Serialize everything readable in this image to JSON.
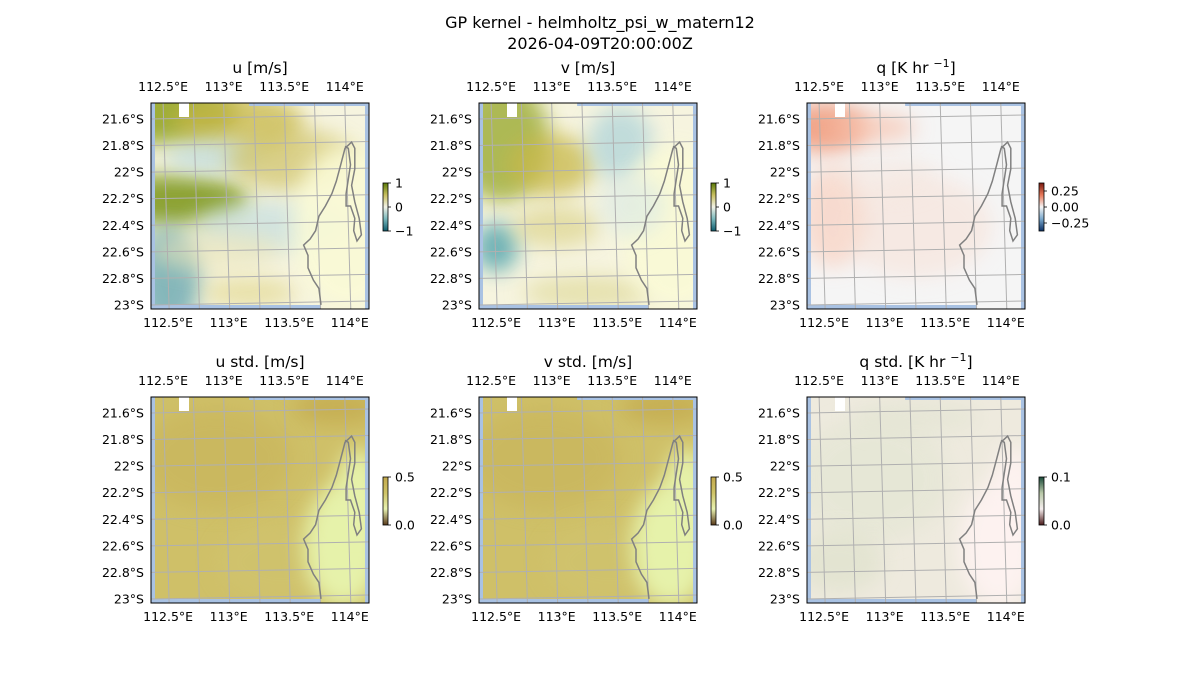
{
  "figure": {
    "title": "GP kernel - helmholtz_psi_w_matern12",
    "subtitle": "2026-04-09T20:00:00Z"
  },
  "axes": {
    "lon_ticks": [
      "112.5°E",
      "113°E",
      "113.5°E",
      "114°E"
    ],
    "lat_ticks": [
      "21.6°S",
      "21.8°S",
      "22°S",
      "22.2°S",
      "22.4°S",
      "22.6°S",
      "22.8°S",
      "23°S"
    ]
  },
  "panels": [
    {
      "id": "u",
      "title_parts": [
        "u [m/s]"
      ],
      "colormap": "green-yellow-white-teal",
      "colorbar": {
        "ticks": [
          "1",
          "0",
          "−1"
        ],
        "colors": [
          "#5a7a08",
          "#c9c060",
          "#f2f2e6",
          "#7ab8bc",
          "#0e5c6e"
        ]
      }
    },
    {
      "id": "v",
      "title_parts": [
        "v [m/s]"
      ],
      "colormap": "green-yellow-white-teal",
      "colorbar": {
        "ticks": [
          "1",
          "0",
          "−1"
        ],
        "colors": [
          "#5a7a08",
          "#c9c060",
          "#f2f2e6",
          "#7ab8bc",
          "#0e5c6e"
        ]
      }
    },
    {
      "id": "q",
      "title_parts": [
        "q [K hr ",
        "−1",
        "]"
      ],
      "colormap": "red-white-blue",
      "colorbar": {
        "ticks": [
          "0.25",
          "0.00",
          "−0.25"
        ],
        "colors": [
          "#7a1a10",
          "#e8795a",
          "#f5f5f5",
          "#7aa8cc",
          "#0c3066"
        ]
      }
    },
    {
      "id": "u_std",
      "title_parts": [
        "u std. [m/s]"
      ],
      "colormap": "sequential-olive",
      "colorbar": {
        "ticks": [
          "0.5",
          "0.0"
        ],
        "colors": [
          "#c2a84c",
          "#cfc468",
          "#e8f2b0",
          "#5a3a1a"
        ]
      }
    },
    {
      "id": "v_std",
      "title_parts": [
        "v std. [m/s]"
      ],
      "colormap": "sequential-olive",
      "colorbar": {
        "ticks": [
          "0.5",
          "0.0"
        ],
        "colors": [
          "#c2a84c",
          "#cfc468",
          "#e8f2b0",
          "#5a3a1a"
        ]
      }
    },
    {
      "id": "q_std",
      "title_parts": [
        "q std. [K hr ",
        "−1",
        "]"
      ],
      "colormap": "pink-green",
      "colorbar": {
        "ticks": [
          "0.1",
          "0.0"
        ],
        "colors": [
          "#1a4a3a",
          "#b8c8a8",
          "#f5eeee",
          "#4a1a1a"
        ]
      }
    }
  ],
  "colors": {
    "ocean_mask": "#a9c2e3",
    "coastline": "#808080",
    "gridlines": "#b0b0b0"
  }
}
